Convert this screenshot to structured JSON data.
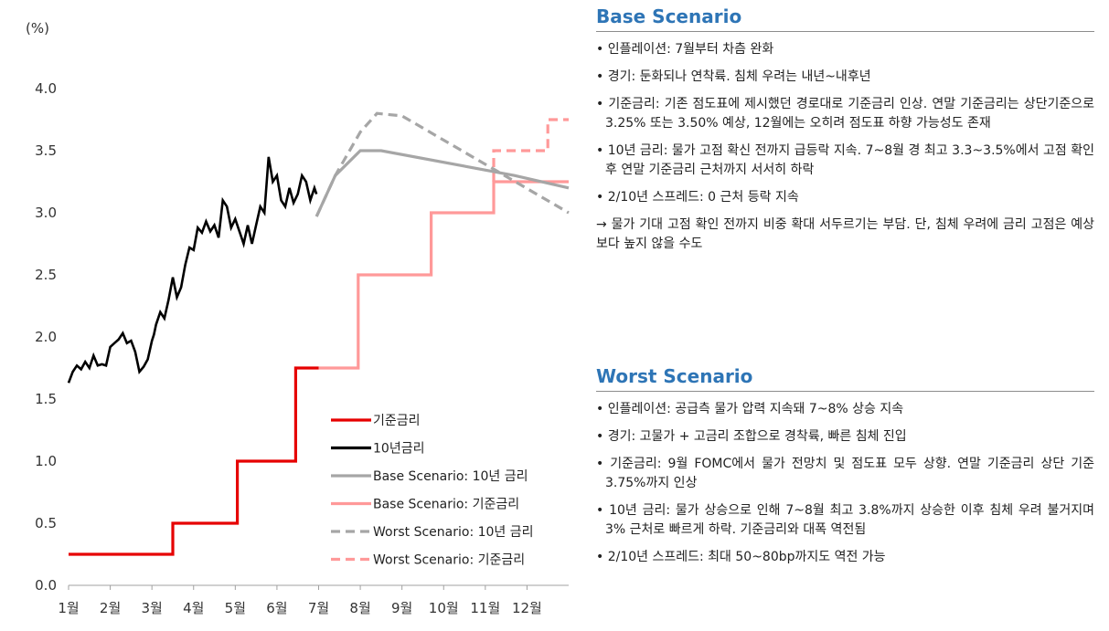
{
  "chart_data": {
    "type": "line",
    "ylabel": "(%)",
    "ylim": [
      0,
      4.0
    ],
    "yticks": [
      "0.0",
      "0.5",
      "1.0",
      "1.5",
      "2.0",
      "2.5",
      "3.0",
      "3.5",
      "4.0"
    ],
    "xticks": [
      "1월",
      "2월",
      "3월",
      "4월",
      "5월",
      "6월",
      "7월",
      "8월",
      "9월",
      "10월",
      "11월",
      "12월"
    ],
    "grid": false,
    "legend_position": "bottom-center",
    "series": [
      {
        "name": "기준금리",
        "color": "#e60000",
        "dash": "solid",
        "step": true,
        "x": [
          0.0,
          2.5,
          2.5,
          4.05,
          4.05,
          5.45,
          5.45,
          6.0
        ],
        "y": [
          0.25,
          0.25,
          0.5,
          0.5,
          1.0,
          1.0,
          1.75,
          1.75
        ]
      },
      {
        "name": "10년금리",
        "color": "#000000",
        "dash": "solid",
        "step": false,
        "x": [
          0.0,
          0.1,
          0.2,
          0.3,
          0.4,
          0.5,
          0.6,
          0.7,
          0.8,
          0.9,
          1.0,
          1.1,
          1.2,
          1.3,
          1.4,
          1.5,
          1.6,
          1.7,
          1.8,
          1.9,
          2.0,
          2.05,
          2.1,
          2.2,
          2.3,
          2.4,
          2.5,
          2.6,
          2.7,
          2.8,
          2.9,
          3.0,
          3.1,
          3.2,
          3.3,
          3.4,
          3.5,
          3.6,
          3.7,
          3.8,
          3.9,
          4.0,
          4.1,
          4.2,
          4.3,
          4.4,
          4.5,
          4.6,
          4.7,
          4.8,
          4.9,
          5.0,
          5.1,
          5.2,
          5.3,
          5.4,
          5.5,
          5.6,
          5.7,
          5.8,
          5.9,
          5.95
        ],
        "y": [
          1.63,
          1.72,
          1.77,
          1.74,
          1.8,
          1.75,
          1.85,
          1.77,
          1.78,
          1.77,
          1.92,
          1.95,
          1.98,
          2.03,
          1.95,
          1.97,
          1.88,
          1.72,
          1.76,
          1.82,
          1.97,
          2.02,
          2.1,
          2.2,
          2.15,
          2.3,
          2.48,
          2.32,
          2.4,
          2.58,
          2.72,
          2.7,
          2.88,
          2.84,
          2.93,
          2.85,
          2.9,
          2.8,
          3.1,
          3.05,
          2.88,
          2.95,
          2.85,
          2.75,
          2.9,
          2.75,
          2.9,
          3.05,
          3.0,
          3.45,
          3.25,
          3.3,
          3.1,
          3.05,
          3.2,
          3.08,
          3.15,
          3.3,
          3.25,
          3.1,
          3.2,
          3.15
        ]
      },
      {
        "name": "Base Scenario: 10년 금리",
        "color": "#a6a6a6",
        "dash": "solid",
        "step": false,
        "x": [
          5.95,
          6.4,
          7.0,
          7.5,
          10.7,
          12.0
        ],
        "y": [
          2.97,
          3.3,
          3.5,
          3.5,
          3.3,
          3.2
        ]
      },
      {
        "name": "Base Scenario: 기준금리",
        "color": "#ff9999",
        "dash": "solid",
        "step": true,
        "x": [
          6.0,
          6.95,
          6.95,
          8.7,
          8.7,
          10.2,
          10.2,
          12.0
        ],
        "y": [
          1.75,
          1.75,
          2.5,
          2.5,
          3.0,
          3.0,
          3.25,
          3.25
        ]
      },
      {
        "name": "Worst Scenario: 10년 금리",
        "color": "#a6a6a6",
        "dash": "dashed",
        "step": false,
        "x": [
          5.95,
          6.4,
          7.0,
          7.4,
          8.0,
          12.0
        ],
        "y": [
          2.97,
          3.3,
          3.65,
          3.8,
          3.78,
          3.0
        ]
      },
      {
        "name": "Worst Scenario: 기준금리",
        "color": "#ff9999",
        "dash": "dashed",
        "step": true,
        "x": [
          10.2,
          10.2,
          11.5,
          11.5,
          12.0
        ],
        "y": [
          3.25,
          3.5,
          3.5,
          3.75,
          3.75
        ]
      }
    ]
  },
  "base": {
    "title": "Base Scenario",
    "items": [
      "• 인플레이션: 7월부터 차츰 완화",
      "• 경기: 둔화되나 연착륙. 침체 우려는 내년~내후년",
      "• 기준금리: 기존 점도표에 제시했던 경로대로 기준금리 인상. 연말 기준금리는 상단기준으로 3.25% 또는 3.50% 예상, 12월에는 오히려 점도표 하향 가능성도 존재",
      "• 10년 금리: 물가 고점 확신 전까지 급등락 지속. 7~8월 경 최고 3.3~3.5%에서 고점 확인 후 연말 기준금리 근처까지 서서히 하락",
      "• 2/10년 스프레드: 0 근처 등락 지속",
      "→ 물가 기대 고점 확인 전까지 비중 확대 서두르기는 부담. 단, 침체 우려에 금리 고점은 예상보다 높지 않을 수도"
    ]
  },
  "worst": {
    "title": "Worst Scenario",
    "items": [
      "• 인플레이션: 공급측 물가 압력 지속돼 7~8% 상승 지속",
      "• 경기: 고물가 + 고금리 조합으로 경착륙, 빠른 침체 진입",
      "• 기준금리: 9월 FOMC에서 물가 전망치 및 점도표 모두 상향. 연말 기준금리 상단 기준 3.75%까지 인상",
      "• 10년 금리: 물가 상승으로 인해 7~8월 최고 3.8%까지 상승한 이후 침체 우려 불거지며 3% 근처로 빠르게 하락. 기준금리와 대폭 역전됨",
      "• 2/10년 스프레드: 최대 50~80bp까지도 역전 가능"
    ]
  }
}
